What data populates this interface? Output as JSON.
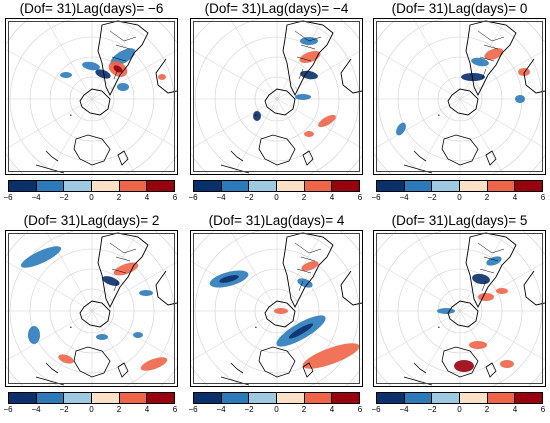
{
  "panels": [
    {
      "title": "(Dof= 31)Lag(days)= −6",
      "lag": -6
    },
    {
      "title": "(Dof= 31)Lag(days)= −4",
      "lag": -4
    },
    {
      "title": "(Dof= 31)Lag(days)= 0",
      "lag": 0
    },
    {
      "title": "(Dof= 31)Lag(days)= 2",
      "lag": 2
    },
    {
      "title": "(Dof= 31)Lag(days)= 4",
      "lag": 4
    },
    {
      "title": "(Dof= 31)Lag(days)= 5",
      "lag": 5
    }
  ],
  "colorbar": {
    "tick_labels": [
      "−6",
      "−4",
      "−2",
      "0",
      "2",
      "4",
      "6"
    ],
    "colors": [
      "#08306b",
      "#2b7bba",
      "#9ecae1",
      "#deebf7",
      "#fde0c5",
      "#ef6548",
      "#99000d"
    ]
  },
  "map": {
    "projection": "south-polar-stereographic",
    "negative_color": "#2b7bba",
    "negative_strong_color": "#08306b",
    "positive_color": "#ef6548",
    "positive_strong_color": "#99000d",
    "coast_color": "#000000",
    "grid_color": "#cfcfcf"
  }
}
